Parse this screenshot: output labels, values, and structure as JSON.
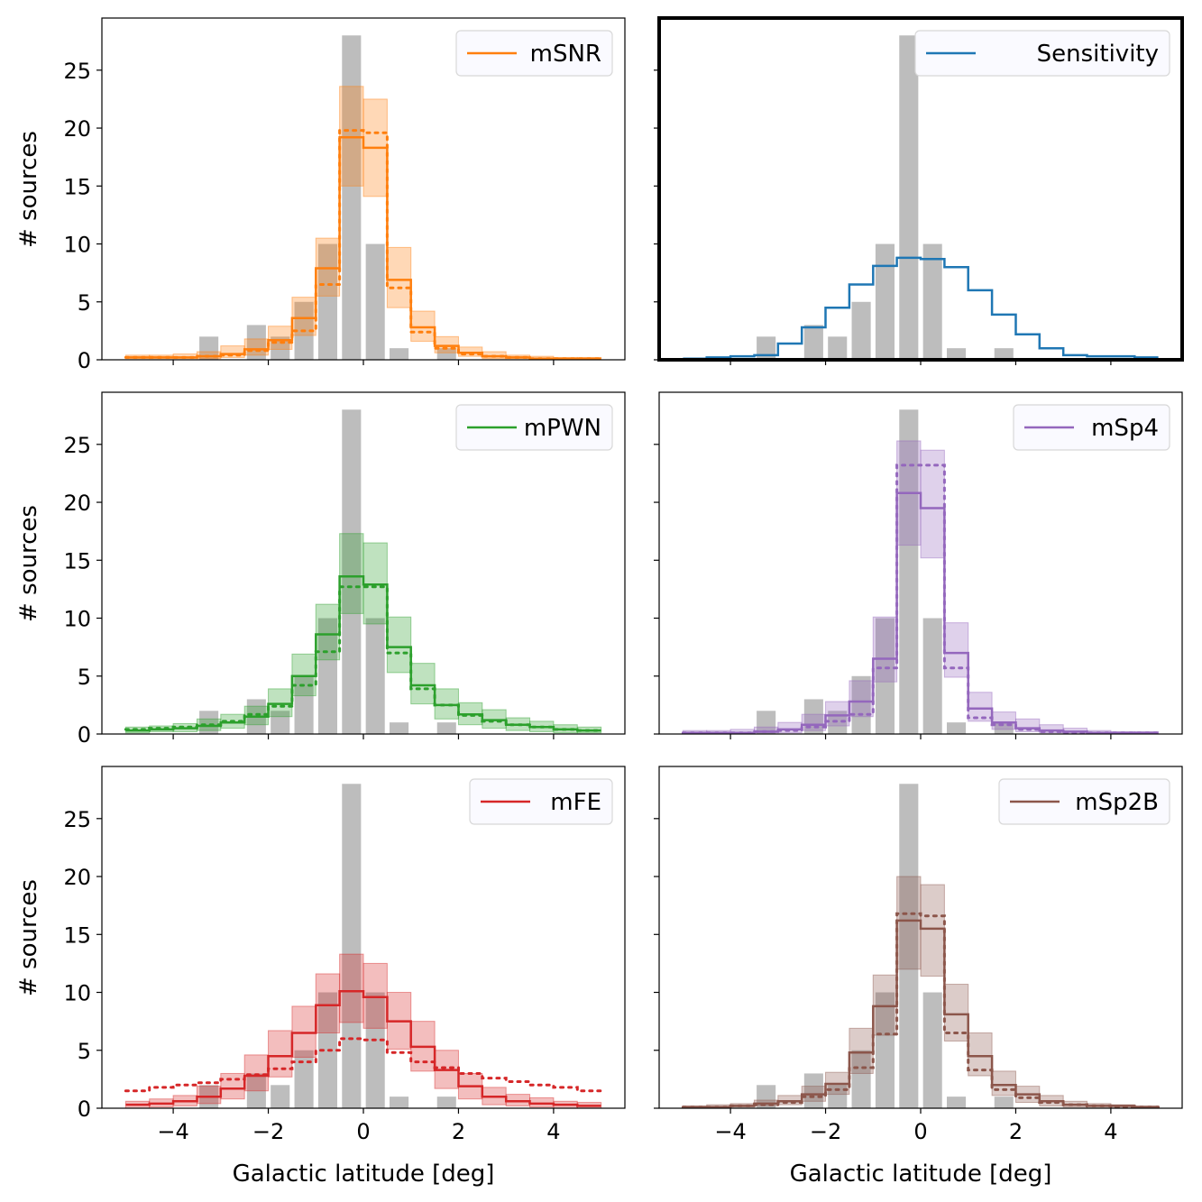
{
  "figure": {
    "xlabel": "Galactic latitude [deg]",
    "ylabel": "# sources"
  },
  "chart_data": [
    {
      "type": "bar",
      "panel": "top-left",
      "legend": [
        {
          "label": "mSNR",
          "color": "#ff7f0e"
        }
      ],
      "legend_position": "top-right",
      "xlim": [
        -5.5,
        5.5
      ],
      "ylim": [
        0,
        29.5
      ],
      "xticks": [
        -4,
        -2,
        0,
        2,
        4
      ],
      "yticks": [
        0,
        5,
        10,
        15,
        20,
        25
      ],
      "highlighted": false
    },
    {
      "type": "bar",
      "panel": "top-right",
      "legend": [
        {
          "label": "Sensitivity",
          "color": "#1f77b4"
        }
      ],
      "legend_position": "top-right",
      "xlim": [
        -5.5,
        5.5
      ],
      "ylim": [
        0,
        29.5
      ],
      "xticks": [
        -4,
        -2,
        0,
        2,
        4
      ],
      "yticks": [
        0,
        5,
        10,
        15,
        20,
        25
      ],
      "highlighted": true
    },
    {
      "type": "bar",
      "panel": "middle-left",
      "legend": [
        {
          "label": "mPWN",
          "color": "#2ca02c"
        }
      ],
      "legend_position": "top-right",
      "xlim": [
        -5.5,
        5.5
      ],
      "ylim": [
        0,
        29.5
      ],
      "xticks": [
        -4,
        -2,
        0,
        2,
        4
      ],
      "yticks": [
        0,
        5,
        10,
        15,
        20,
        25
      ],
      "highlighted": false
    },
    {
      "type": "bar",
      "panel": "middle-right",
      "legend": [
        {
          "label": "mSp4",
          "color": "#9467bd"
        }
      ],
      "legend_position": "top-right",
      "xlim": [
        -5.5,
        5.5
      ],
      "ylim": [
        0,
        29.5
      ],
      "xticks": [
        -4,
        -2,
        0,
        2,
        4
      ],
      "yticks": [
        0,
        5,
        10,
        15,
        20,
        25
      ],
      "highlighted": false
    },
    {
      "type": "bar",
      "panel": "bottom-left",
      "legend": [
        {
          "label": "mFE",
          "color": "#d62728"
        }
      ],
      "legend_position": "top-right",
      "xlim": [
        -5.5,
        5.5
      ],
      "ylim": [
        0,
        29.5
      ],
      "xticks": [
        -4,
        -2,
        0,
        2,
        4
      ],
      "yticks": [
        0,
        5,
        10,
        15,
        20,
        25
      ],
      "highlighted": false
    },
    {
      "type": "bar",
      "panel": "bottom-right",
      "legend": [
        {
          "label": "mSp2B",
          "color": "#8c564b"
        }
      ],
      "legend_position": "top-right",
      "xlim": [
        -5.5,
        5.5
      ],
      "ylim": [
        0,
        29.5
      ],
      "xticks": [
        -4,
        -2,
        0,
        2,
        4
      ],
      "yticks": [
        0,
        5,
        10,
        15,
        20,
        25
      ],
      "highlighted": false
    }
  ],
  "observed": {
    "bin_centers": [
      -4.75,
      -4.25,
      -3.75,
      -3.25,
      -2.75,
      -2.25,
      -1.75,
      -1.25,
      -0.75,
      -0.25,
      0.25,
      0.75,
      1.25,
      1.75,
      2.25,
      2.75,
      3.25,
      3.75,
      4.25,
      4.75
    ],
    "counts": [
      0,
      0,
      0,
      2,
      0,
      3,
      2,
      5,
      10,
      28,
      10,
      1,
      0,
      1,
      0,
      0,
      0,
      0,
      0,
      0
    ],
    "color": "#bdbdbd"
  },
  "model_x": [
    -4.75,
    -4.25,
    -3.75,
    -3.25,
    -2.75,
    -2.25,
    -1.75,
    -1.25,
    -0.75,
    -0.25,
    0.25,
    0.75,
    1.25,
    1.75,
    2.25,
    2.75,
    3.25,
    3.75,
    4.25,
    4.75
  ],
  "models": {
    "mSNR": {
      "solid": [
        0.2,
        0.2,
        0.2,
        0.3,
        0.5,
        0.9,
        1.7,
        3.6,
        7.9,
        19.2,
        18.3,
        6.9,
        2.8,
        1.2,
        0.6,
        0.3,
        0.2,
        0.1,
        0.1,
        0.1
      ],
      "dotted": [
        0.2,
        0.2,
        0.2,
        0.3,
        0.4,
        0.8,
        1.5,
        2.5,
        6.5,
        19.8,
        19.6,
        6.2,
        2.4,
        1.0,
        0.5,
        0.3,
        0.2,
        0.1,
        0.1,
        0.1
      ],
      "lower": [
        0.1,
        0.1,
        0.1,
        0.1,
        0.2,
        0.4,
        0.9,
        2.1,
        5.5,
        15.0,
        14.1,
        4.5,
        1.6,
        0.6,
        0.3,
        0.1,
        0.1,
        0.0,
        0.0,
        0.0
      ],
      "upper": [
        0.4,
        0.4,
        0.5,
        0.7,
        1.2,
        1.8,
        2.9,
        5.4,
        10.5,
        23.6,
        22.5,
        9.7,
        4.2,
        2.0,
        1.1,
        0.7,
        0.4,
        0.3,
        0.2,
        0.2
      ]
    },
    "Sensitivity": {
      "solid": [
        0.1,
        0.2,
        0.3,
        0.4,
        1.4,
        2.8,
        4.5,
        6.5,
        8.1,
        8.8,
        8.7,
        8.0,
        6.0,
        3.9,
        2.2,
        1.0,
        0.4,
        0.3,
        0.3,
        0.2
      ]
    },
    "mPWN": {
      "solid": [
        0.3,
        0.4,
        0.5,
        0.7,
        1.0,
        1.5,
        2.6,
        5.0,
        8.6,
        13.6,
        12.9,
        7.5,
        4.2,
        2.5,
        1.7,
        1.2,
        0.8,
        0.6,
        0.4,
        0.3
      ],
      "dotted": [
        0.4,
        0.5,
        0.6,
        0.8,
        1.1,
        1.7,
        2.4,
        4.2,
        7.1,
        12.7,
        12.7,
        7.0,
        3.9,
        2.5,
        1.6,
        1.1,
        0.8,
        0.6,
        0.4,
        0.3
      ],
      "lower": [
        0.1,
        0.2,
        0.2,
        0.3,
        0.5,
        0.8,
        1.5,
        3.3,
        6.4,
        10.4,
        9.5,
        5.3,
        2.6,
        1.3,
        0.8,
        0.5,
        0.3,
        0.2,
        0.1,
        0.1
      ],
      "upper": [
        0.6,
        0.7,
        0.9,
        1.3,
        1.7,
        2.4,
        3.9,
        6.9,
        11.2,
        17.3,
        16.5,
        10.1,
        6.1,
        3.9,
        2.7,
        2.1,
        1.4,
        1.1,
        0.8,
        0.6
      ]
    },
    "mSp4": {
      "solid": [
        0.1,
        0.1,
        0.1,
        0.2,
        0.4,
        0.8,
        1.6,
        2.8,
        6.5,
        20.8,
        19.5,
        7.0,
        2.2,
        1.0,
        0.5,
        0.3,
        0.2,
        0.1,
        0.1,
        0.1
      ],
      "dotted": [
        0.1,
        0.1,
        0.1,
        0.2,
        0.3,
        0.6,
        1.1,
        1.7,
        5.7,
        23.2,
        23.2,
        5.7,
        1.4,
        0.8,
        0.4,
        0.2,
        0.1,
        0.1,
        0.1,
        0.1
      ],
      "lower": [
        0.0,
        0.0,
        0.0,
        0.1,
        0.1,
        0.3,
        0.7,
        1.5,
        4.5,
        16.3,
        15.2,
        4.9,
        1.1,
        0.4,
        0.2,
        0.1,
        0.0,
        0.0,
        0.0,
        0.0
      ],
      "upper": [
        0.3,
        0.3,
        0.4,
        0.6,
        1.0,
        1.7,
        2.8,
        4.6,
        10.1,
        25.3,
        24.5,
        9.6,
        3.6,
        1.9,
        1.3,
        0.8,
        0.5,
        0.3,
        0.2,
        0.2
      ]
    },
    "mFE": {
      "solid": [
        0.3,
        0.4,
        0.6,
        1.0,
        1.7,
        2.8,
        4.5,
        6.5,
        8.9,
        10.1,
        9.6,
        7.5,
        5.3,
        3.3,
        1.9,
        1.0,
        0.6,
        0.4,
        0.3,
        0.2
      ],
      "dotted": [
        1.5,
        1.8,
        2.0,
        2.2,
        2.5,
        2.9,
        3.4,
        4.0,
        5.0,
        6.0,
        5.9,
        4.8,
        4.0,
        3.5,
        3.0,
        2.6,
        2.3,
        2.0,
        1.8,
        1.5
      ],
      "lower": [
        0.0,
        0.1,
        0.2,
        0.4,
        0.8,
        1.5,
        2.7,
        4.4,
        6.5,
        7.4,
        6.9,
        5.1,
        3.2,
        1.7,
        0.8,
        0.3,
        0.2,
        0.1,
        0.0,
        0.0
      ],
      "upper": [
        0.6,
        0.8,
        1.1,
        1.9,
        3.0,
        4.6,
        6.7,
        8.8,
        11.6,
        13.3,
        12.5,
        10.0,
        7.5,
        5.0,
        3.0,
        1.8,
        1.2,
        0.9,
        0.6,
        0.5
      ]
    },
    "mSp2B": {
      "solid": [
        0.1,
        0.1,
        0.2,
        0.4,
        0.6,
        1.2,
        2.1,
        4.8,
        8.8,
        16.2,
        15.5,
        8.1,
        4.5,
        2.0,
        1.2,
        0.6,
        0.3,
        0.2,
        0.2,
        0.1
      ],
      "dotted": [
        0.1,
        0.1,
        0.2,
        0.3,
        0.5,
        1.0,
        1.6,
        3.5,
        6.4,
        16.8,
        16.6,
        6.5,
        3.3,
        1.6,
        0.9,
        0.5,
        0.3,
        0.2,
        0.1,
        0.1
      ],
      "lower": [
        0.0,
        0.0,
        0.1,
        0.2,
        0.3,
        0.6,
        1.2,
        3.0,
        6.3,
        12.0,
        11.4,
        5.8,
        2.8,
        1.1,
        0.5,
        0.2,
        0.1,
        0.0,
        0.0,
        0.0
      ],
      "upper": [
        0.2,
        0.3,
        0.4,
        0.7,
        1.1,
        1.9,
        3.1,
        6.9,
        11.5,
        20.0,
        19.3,
        10.7,
        6.5,
        3.2,
        1.9,
        1.1,
        0.6,
        0.4,
        0.3,
        0.2
      ]
    }
  }
}
